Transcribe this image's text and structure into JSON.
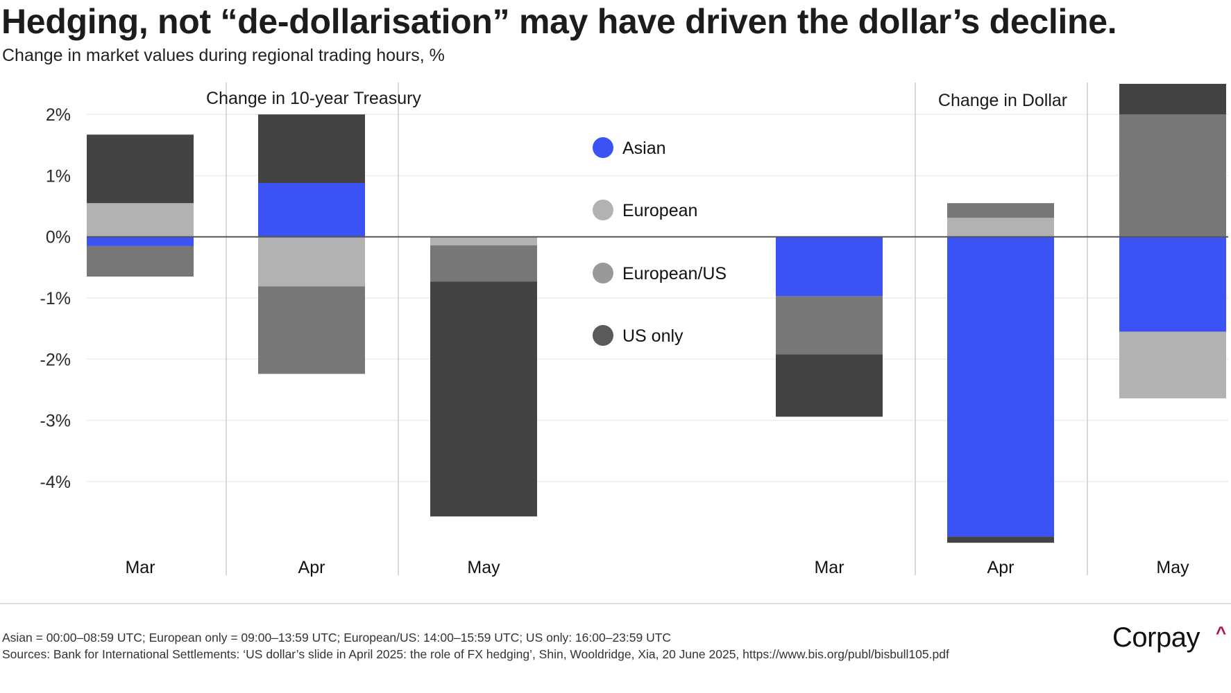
{
  "header": {
    "title": "Hedging, not “de-dollarisation” may have driven the dollar’s decline.",
    "subtitle": "Change in market values during regional trading hours, %"
  },
  "footer": {
    "note": "Asian = 00:00–08:59 UTC; European only = 09:00–13:59 UTC; European/US: 14:00–15:59 UTC; US only: 16:00–23:59 UTC",
    "sources": "Sources: Bank for International Settlements: ‘US dollar’s slide in April 2025: the role of FX hedging’, Shin, Wooldridge, Xia,  20 June 2025, https://www.bis.org/publ/bisbull105.pdf",
    "logo_text": "Corpay",
    "logo_mark": "^"
  },
  "colors": {
    "asian": "#3b52f5",
    "european": "#b2b2b2",
    "european_us": "#777777",
    "us_only": "#434343",
    "logo_accent": "#b3123c"
  },
  "chart_data": {
    "type": "bar",
    "stacked": true,
    "title": "Hedging, not “de-dollarisation” may have driven the dollar’s decline.",
    "ylabel": "Change in market values during regional trading hours, %",
    "xlabel": "",
    "ylim": [
      -5.1,
      2.55
    ],
    "yticks": [
      2,
      1,
      0,
      -1,
      -2,
      -3,
      -4
    ],
    "ytick_labels": [
      "2%",
      "1%",
      "0%",
      "-1%",
      "-2%",
      "-3%",
      "-4%"
    ],
    "grid": true,
    "legend": {
      "placement": "center",
      "entries": [
        "Asian",
        "European",
        "European/US",
        "US only"
      ]
    },
    "panels": [
      {
        "title": "Change in 10-year Treasury",
        "categories": [
          "Mar",
          "Apr",
          "May"
        ],
        "series": [
          {
            "name": "Asian",
            "values": [
              -0.15,
              0.88,
              0.0
            ]
          },
          {
            "name": "European",
            "values": [
              0.55,
              -0.81,
              -0.14
            ]
          },
          {
            "name": "European/US",
            "values": [
              -0.5,
              -1.43,
              -0.59
            ]
          },
          {
            "name": "US only",
            "values": [
              1.12,
              1.12,
              -3.84
            ]
          }
        ]
      },
      {
        "title": "Change in Dollar",
        "categories": [
          "Mar",
          "Apr",
          "May"
        ],
        "series": [
          {
            "name": "Asian",
            "values": [
              -0.97,
              -4.9,
              -1.55
            ]
          },
          {
            "name": "European",
            "values": [
              0.0,
              0.31,
              -1.09
            ]
          },
          {
            "name": "European/US",
            "values": [
              -0.95,
              0.24,
              2.0
            ]
          },
          {
            "name": "US only",
            "values": [
              -1.02,
              -0.1,
              0.5
            ]
          }
        ]
      }
    ]
  }
}
